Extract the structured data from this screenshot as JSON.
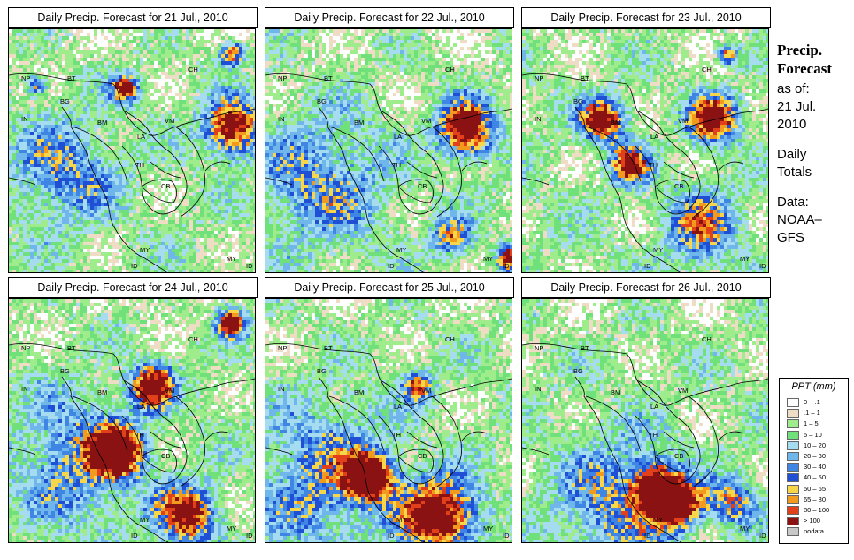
{
  "panels": [
    {
      "title": "Daily Precip. Forecast for  21 Jul., 2010",
      "day": 0
    },
    {
      "title": "Daily Precip. Forecast for  22 Jul., 2010",
      "day": 1
    },
    {
      "title": "Daily Precip. Forecast for  23 Jul., 2010",
      "day": 2
    },
    {
      "title": "Daily Precip. Forecast for  24 Jul., 2010",
      "day": 3
    },
    {
      "title": "Daily Precip. Forecast for  25 Jul., 2010",
      "day": 4
    },
    {
      "title": "Daily Precip. Forecast for  26 Jul., 2010",
      "day": 5
    }
  ],
  "country_labels": [
    "NP",
    "BT",
    "BG",
    "IN",
    "BM",
    "CH",
    "VM",
    "LA",
    "TH",
    "CB",
    "MY",
    "ID",
    "MY",
    "ID"
  ],
  "sidebar": {
    "heading_1": "Precip.",
    "heading_2": "Forecast",
    "asof_1": "as of:",
    "asof_2": "21 Jul.",
    "asof_3": "2010",
    "totals_1": "Daily",
    "totals_2": "Totals",
    "data_1": "Data:",
    "data_2": "NOAA–",
    "data_3": "GFS"
  },
  "legend": {
    "title": "PPT (mm)",
    "classes": [
      {
        "label": "0 – .1",
        "color": "#ffffff"
      },
      {
        "label": ".1 – 1",
        "color": "#efdcc4"
      },
      {
        "label": "1 – 5",
        "color": "#9fec8d"
      },
      {
        "label": "5 – 10",
        "color": "#6fe07a"
      },
      {
        "label": "10 – 20",
        "color": "#a6dcf0"
      },
      {
        "label": "20 – 30",
        "color": "#6fb6ea"
      },
      {
        "label": "30 – 40",
        "color": "#3f86e4"
      },
      {
        "label": "40 – 50",
        "color": "#1f4fd4"
      },
      {
        "label": "50 – 65",
        "color": "#f7d64a"
      },
      {
        "label": "65 – 80",
        "color": "#f29a1e"
      },
      {
        "label": "80 – 100",
        "color": "#e1401a"
      },
      {
        "label": "> 100",
        "color": "#8a1212"
      },
      {
        "label": "nodata",
        "color": "#c8c8c8"
      }
    ]
  }
}
